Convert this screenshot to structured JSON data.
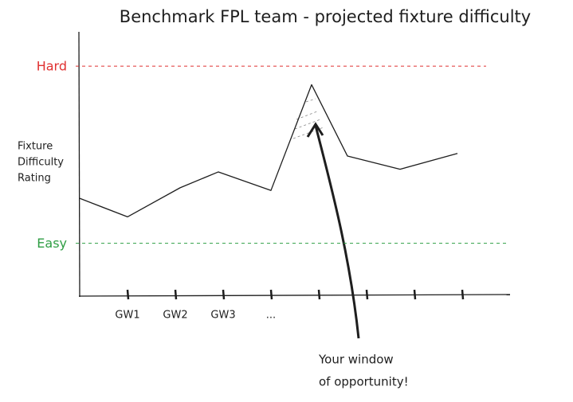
{
  "chart_data": {
    "type": "line",
    "title": "Benchmark FPL team - projected fixture difficulty",
    "ylabel_lines": [
      "Fixture",
      "Difficulty",
      "Rating"
    ],
    "xlim": [
      0,
      9
    ],
    "ylim": [
      0,
      10
    ],
    "xticks": [
      {
        "value": 1,
        "label": "GW1"
      },
      {
        "value": 2,
        "label": "GW2"
      },
      {
        "value": 3,
        "label": "GW3"
      },
      {
        "value": 4,
        "label": "..."
      },
      {
        "value": 5,
        "label": null
      },
      {
        "value": 6,
        "label": null
      },
      {
        "value": 7,
        "label": null
      },
      {
        "value": 8,
        "label": null
      }
    ],
    "reference_lines": [
      {
        "label": "Hard",
        "value": 8.7,
        "color": "#e03131"
      },
      {
        "label": "Easy",
        "value": 2.0,
        "color": "#2f9e44"
      }
    ],
    "series": [
      {
        "color": "#1e1e1e",
        "x": [
          0,
          1,
          2.1,
          2.9,
          4.0,
          4.85,
          5.6,
          6.7,
          7.9
        ],
        "values": [
          3.7,
          3.0,
          4.1,
          4.7,
          4.0,
          8.0,
          5.3,
          4.8,
          5.4
        ]
      }
    ],
    "annotation_lines": [
      "Your window",
      "of opportunity!"
    ]
  }
}
